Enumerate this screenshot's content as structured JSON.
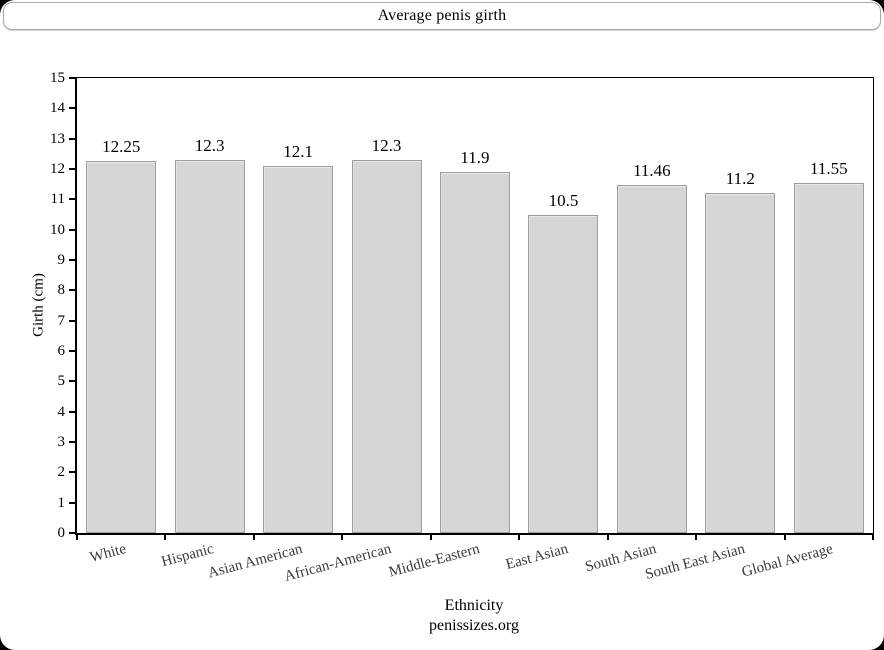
{
  "header": {
    "title": "Average penis girth"
  },
  "chart_data": {
    "type": "bar",
    "title": "Average penis girth",
    "categories": [
      "White",
      "Hispanic",
      "Asian American",
      "African-American",
      "Middle-Eastern",
      "East Asian",
      "South Asian",
      "South East Asian",
      "Global Average"
    ],
    "values": [
      12.25,
      12.3,
      12.1,
      12.3,
      11.9,
      10.5,
      11.46,
      11.2,
      11.55
    ],
    "value_labels": [
      "12.25",
      "12.3",
      "12.1",
      "12.3",
      "11.9",
      "10.5",
      "11.46",
      "11.2",
      "11.55"
    ],
    "xlabel": "Ethnicity",
    "ylabel": "Girth (cm)",
    "source": "penissizes.org",
    "ylim": [
      0,
      15
    ],
    "ytick_step": 1,
    "grid": false,
    "legend": "none",
    "bar_fill": "#d6d6d6",
    "bar_border": "#9e9e9e"
  }
}
